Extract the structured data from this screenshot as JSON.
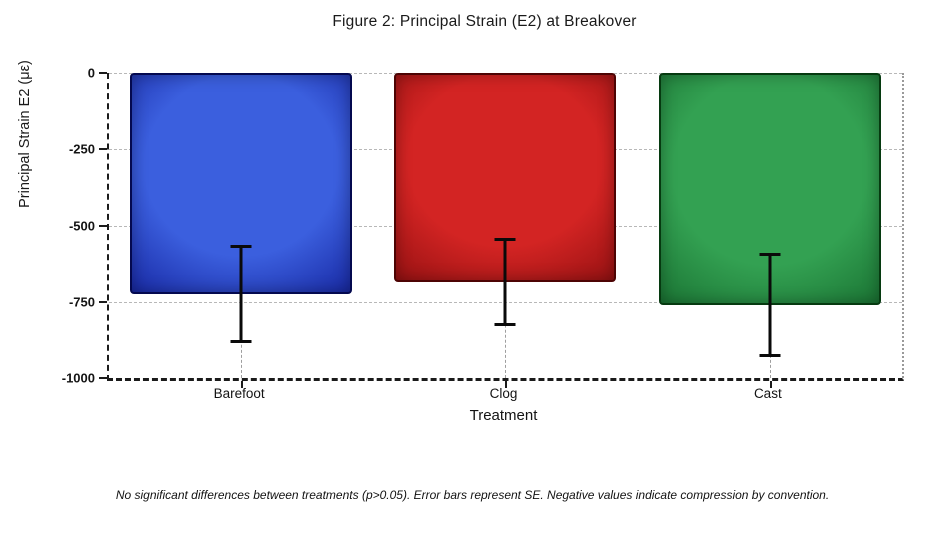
{
  "figure": {
    "title": "Figure 2: Principal Strain (E2) at Breakover",
    "footnote": "No significant differences between treatments (p>0.05). Error bars represent SE. Negative values indicate compression by convention."
  },
  "chart_data": {
    "type": "bar",
    "title": "Figure 2: Principal Strain (E2) at Breakover",
    "xlabel": "Treatment",
    "ylabel": "Principal Strain E2 (με)",
    "categories": [
      "Barefoot",
      "Clog",
      "Cast"
    ],
    "values": [
      -725,
      -685,
      -760
    ],
    "standard_errors": [
      160,
      145,
      170
    ],
    "error_bar_meaning": "SE",
    "ylim": [
      -1000,
      0
    ],
    "yticks": [
      0,
      -250,
      -500,
      -750,
      -1000
    ],
    "ytick_labels": [
      "0",
      "-250",
      "-500",
      "-750",
      "-1000"
    ],
    "grid": "horizontal-dashed",
    "legend": "none",
    "significance_note": "No significant differences between treatments (p>0.05)",
    "bar_colors": [
      {
        "name": "blue",
        "fill": "#3b5fde",
        "edge": "#13219b",
        "border": "#04094f"
      },
      {
        "name": "red",
        "fill": "#d32423",
        "edge": "#8e0f10",
        "border": "#4d0404"
      },
      {
        "name": "green",
        "fill": "#33a152",
        "edge": "#176d2f",
        "border": "#063a10"
      }
    ]
  }
}
